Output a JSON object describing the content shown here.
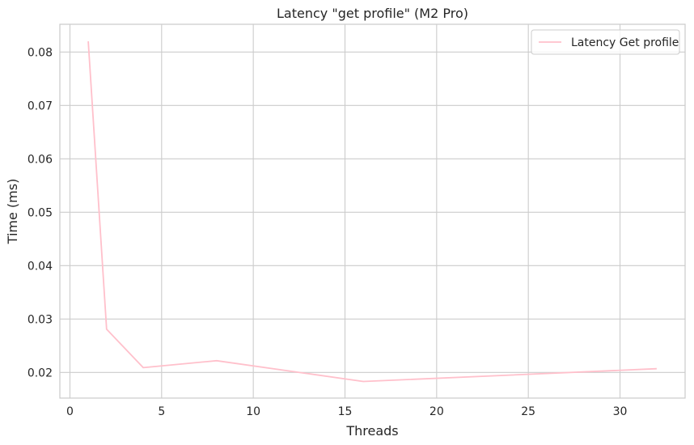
{
  "chart_data": {
    "type": "line",
    "title": "Latency \"get profile\" (M2 Pro)",
    "xlabel": "Threads",
    "ylabel": "Time (ms)",
    "xlim": [
      -0.55,
      33.55
    ],
    "ylim": [
      0.0152,
      0.0852
    ],
    "xticks": [
      0,
      5,
      10,
      15,
      20,
      25,
      30
    ],
    "yticks": [
      0.02,
      0.03,
      0.04,
      0.05,
      0.06,
      0.07,
      0.08
    ],
    "grid": true,
    "legend_position": "top-right",
    "series": [
      {
        "name": "Latency Get profile",
        "color": "#ffc0cb",
        "x": [
          1,
          2,
          4,
          8,
          16,
          32
        ],
        "y": [
          0.082,
          0.0281,
          0.0209,
          0.0222,
          0.0183,
          0.0207
        ]
      }
    ]
  }
}
